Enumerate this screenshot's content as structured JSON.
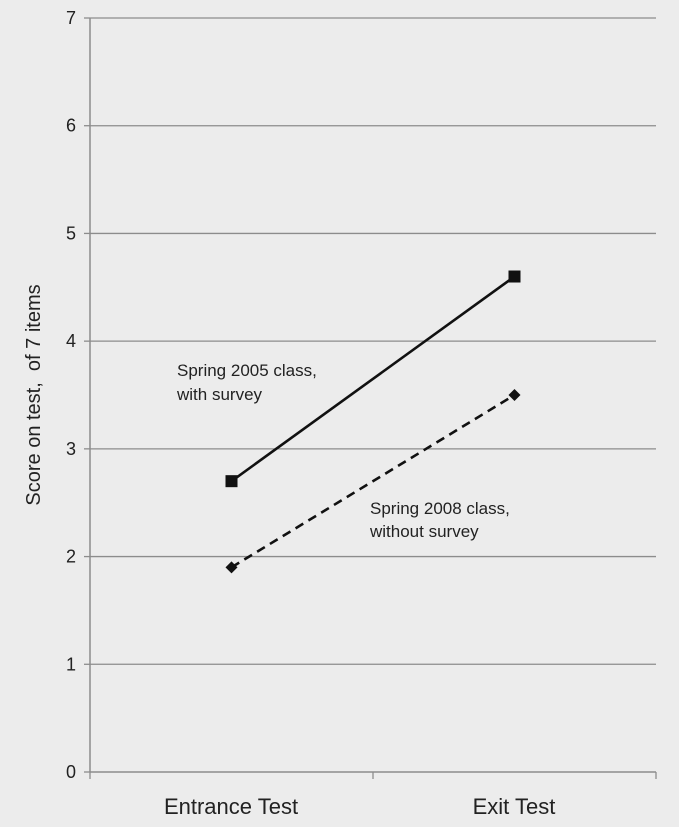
{
  "chart_data": {
    "type": "line",
    "categories": [
      "Entrance Test",
      "Exit Test"
    ],
    "series": [
      {
        "name": "Spring 2005 class, with survey",
        "values": [
          2.7,
          4.6
        ],
        "marker": "square",
        "line_style": "solid",
        "color": "#111111"
      },
      {
        "name": "Spring 2008 class, without survey",
        "values": [
          1.9,
          3.5
        ],
        "marker": "diamond",
        "line_style": "dashed",
        "color": "#111111"
      }
    ],
    "ylabel": "Score on test,  of 7 items",
    "ylim": [
      0,
      7
    ],
    "yticks": [
      "0",
      "1",
      "2",
      "3",
      "4",
      "5",
      "6",
      "7"
    ],
    "grid": true,
    "annotations": [
      {
        "lines": [
          "Spring 2005 class,",
          "with survey"
        ]
      },
      {
        "lines": [
          "Spring 2008 class,",
          "without survey"
        ]
      }
    ],
    "background_color": "#ececec",
    "gridline_color": "#8c8c8c"
  }
}
